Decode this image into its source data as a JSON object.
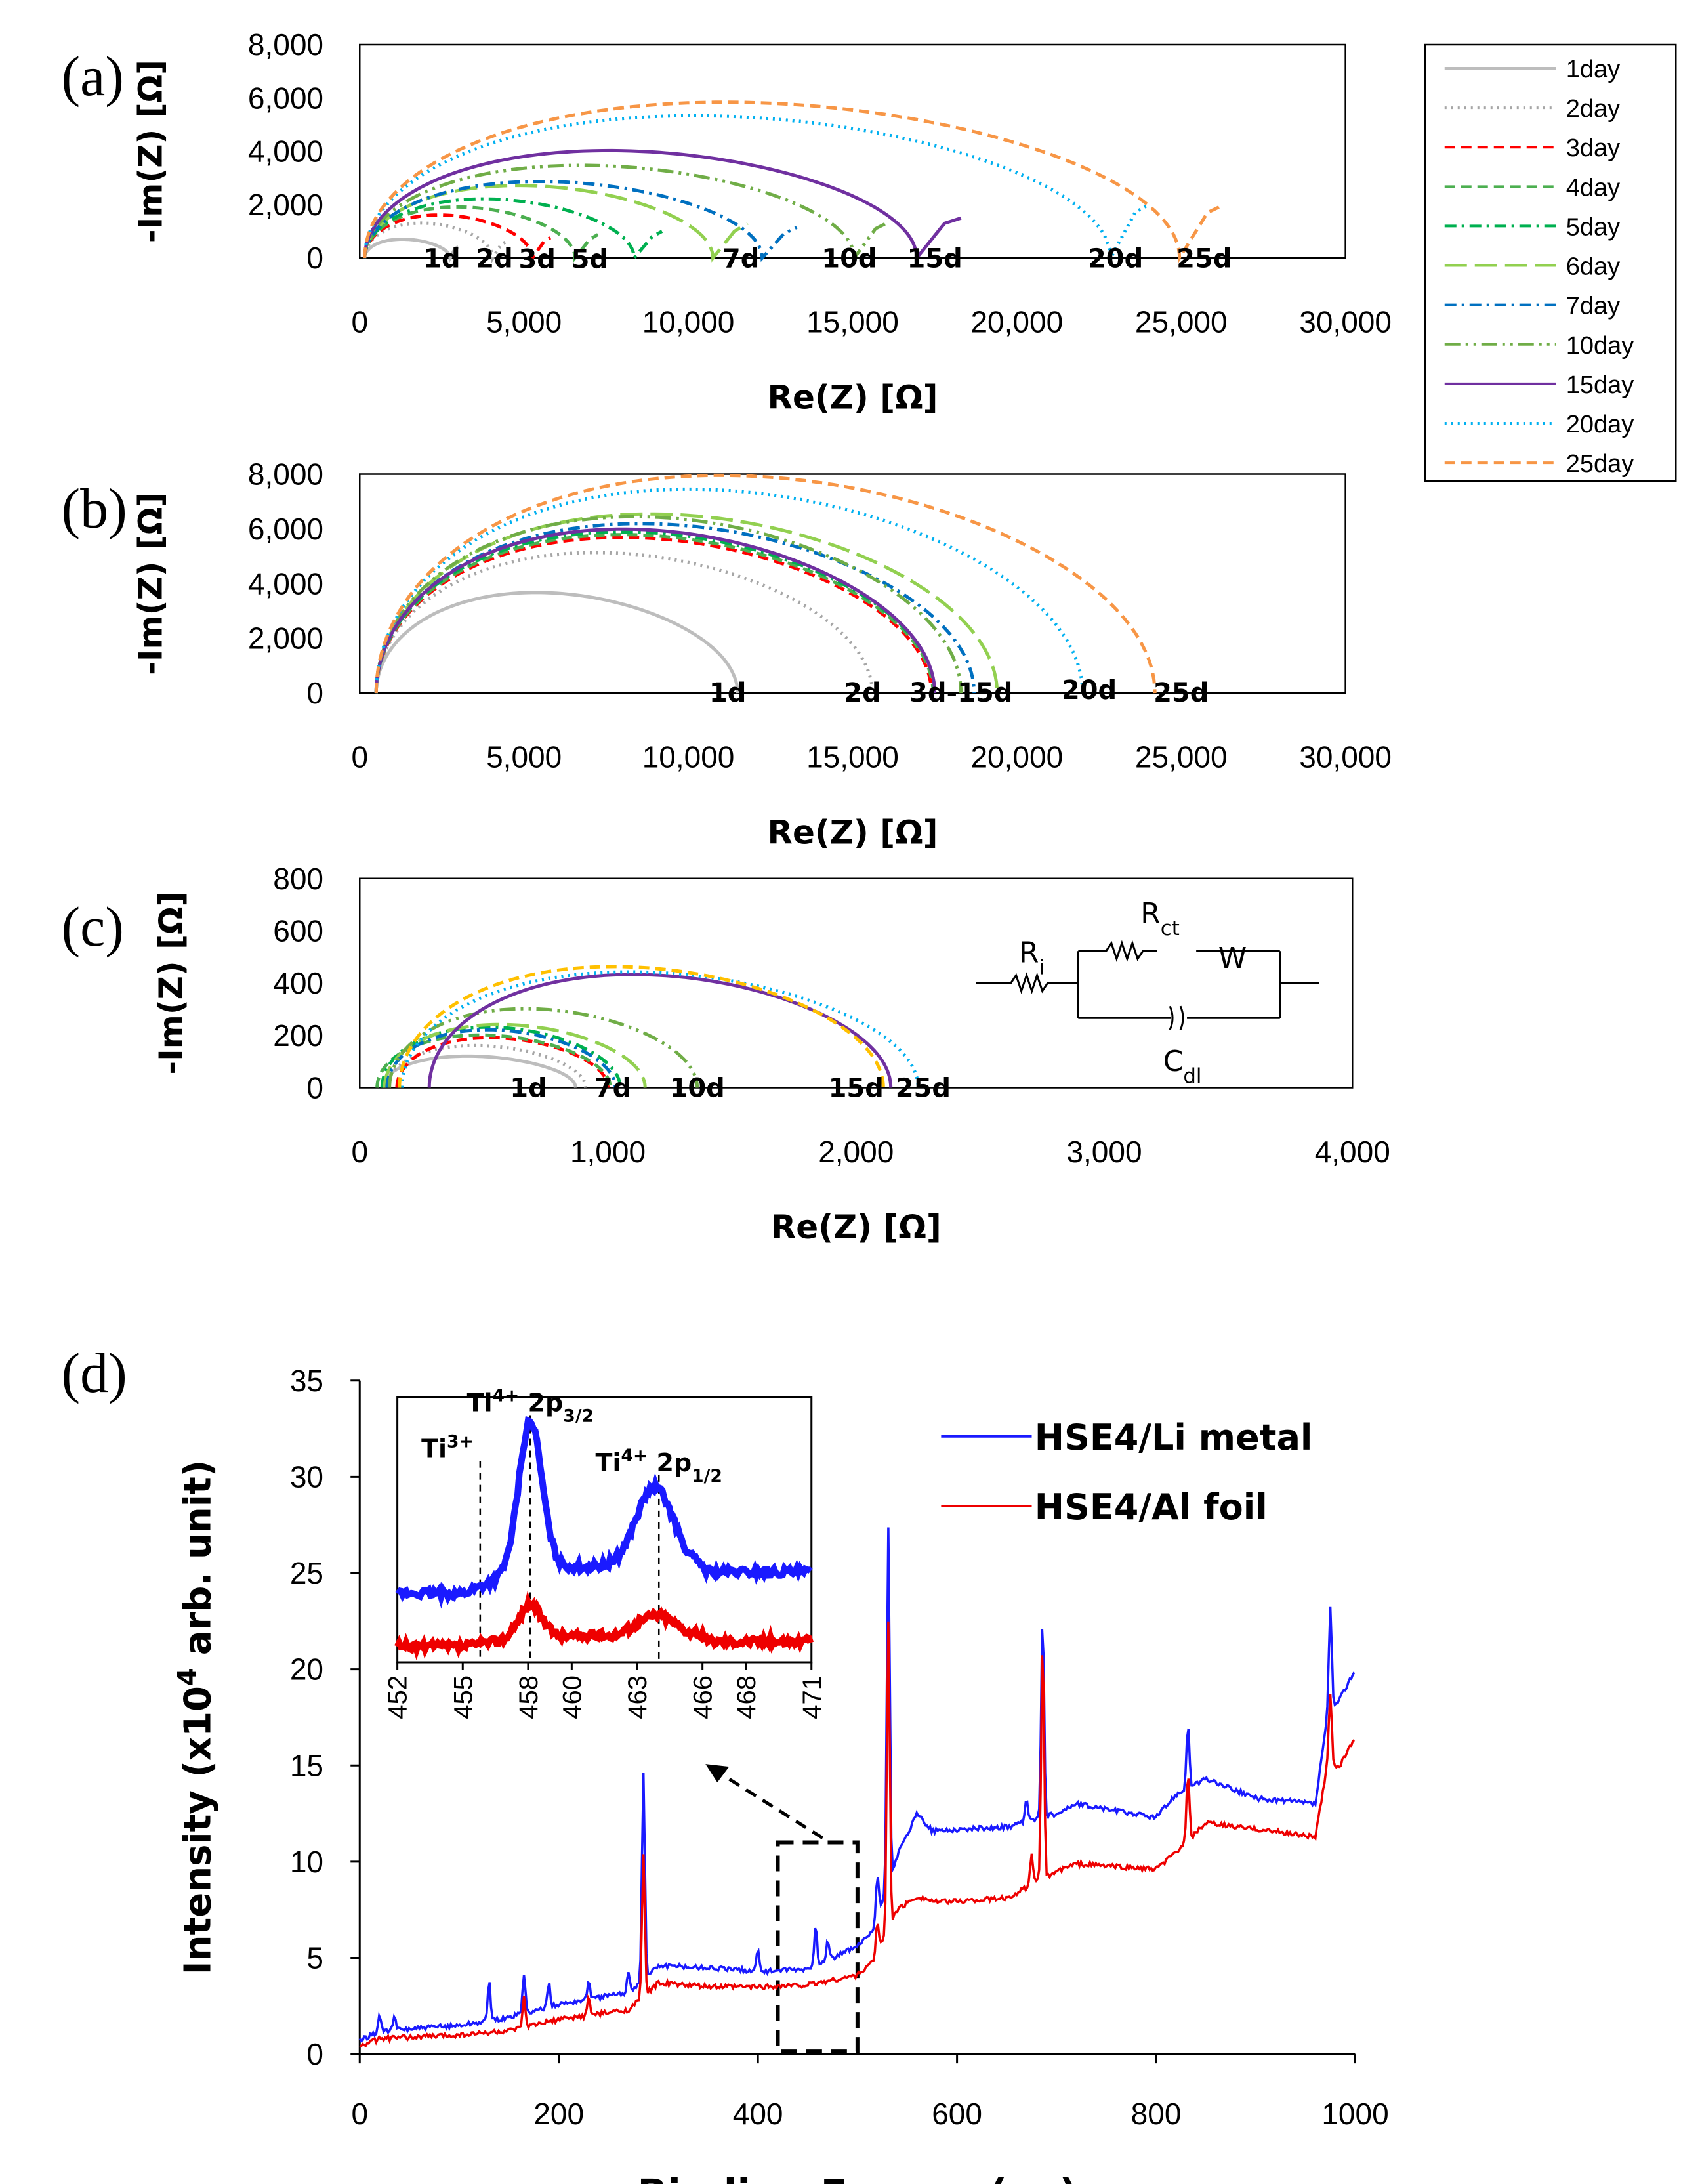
{
  "chart_data": [
    {
      "id": "a",
      "type": "line",
      "panel_label": "(a)",
      "xlabel": "Re(Z) [Ω]",
      "ylabel": "-Im(Z) [Ω]",
      "xlim": [
        0,
        30000
      ],
      "ylim": [
        0,
        8000
      ],
      "xticks": [
        "0",
        "5,000",
        "10,000",
        "15,000",
        "20,000",
        "25,000",
        "30,000"
      ],
      "yticks": [
        "0",
        "2,000",
        "4,000",
        "6,000",
        "8,000"
      ],
      "legend_position": "right",
      "legend": [
        "1day",
        "2day",
        "3day",
        "4day",
        "5day",
        "6day",
        "7day",
        "10day",
        "15day",
        "20day",
        "25day"
      ],
      "series": [
        {
          "name": "1day",
          "color": "#bdbdbd",
          "dash": "solid",
          "r0": 150,
          "diam": 2600,
          "peak": 700,
          "tail": [
            [
              2900,
              350
            ],
            [
              3000,
              420
            ]
          ]
        },
        {
          "name": "2day",
          "color": "#a6a6a6",
          "dash": "dot",
          "r0": 150,
          "diam": 3900,
          "peak": 1300,
          "tail": [
            [
              4300,
              500
            ],
            [
              4500,
              640
            ]
          ]
        },
        {
          "name": "3day",
          "color": "#ff0000",
          "dash": "dash",
          "r0": 150,
          "diam": 5100,
          "peak": 1600,
          "tail": [
            [
              5600,
              600
            ],
            [
              5800,
              760
            ]
          ]
        },
        {
          "name": "4day",
          "color": "#4caf50",
          "dash": "dash",
          "r0": 150,
          "diam": 6400,
          "peak": 1900,
          "tail": [
            [
              7000,
              700
            ],
            [
              7250,
              880
            ]
          ]
        },
        {
          "name": "5day",
          "color": "#00b050",
          "dash": "dashdot",
          "r0": 150,
          "diam": 8200,
          "peak": 2200,
          "tail": [
            [
              8900,
              800
            ],
            [
              9200,
              1000
            ]
          ]
        },
        {
          "name": "6day",
          "color": "#92d050",
          "dash": "longdash",
          "r0": 150,
          "diam": 10600,
          "peak": 2700,
          "tail": [
            [
              11400,
              1000
            ],
            [
              11800,
              1300
            ]
          ]
        },
        {
          "name": "7day",
          "color": "#0070c0",
          "dash": "dashdot",
          "r0": 150,
          "diam": 12100,
          "peak": 2850,
          "tail": [
            [
              12900,
              900
            ],
            [
              13300,
              1150
            ]
          ]
        },
        {
          "name": "10day",
          "color": "#70ad47",
          "dash": "dashdotdot",
          "r0": 150,
          "diam": 14900,
          "peak": 3450,
          "tail": [
            [
              15700,
              1100
            ],
            [
              16100,
              1350
            ]
          ]
        },
        {
          "name": "15day",
          "color": "#7030a0",
          "dash": "solid",
          "r0": 150,
          "diam": 16800,
          "peak": 4000,
          "tail": [
            [
              17800,
              1300
            ],
            [
              18300,
              1500
            ]
          ]
        },
        {
          "name": "20day",
          "color": "#00b0f0",
          "dash": "dot",
          "r0": 150,
          "diam": 22700,
          "peak": 5300,
          "tail": [
            [
              23600,
              1700
            ],
            [
              24000,
              2000
            ]
          ]
        },
        {
          "name": "25day",
          "color": "#f79646",
          "dash": "dash",
          "r0": 150,
          "diam": 24800,
          "peak": 5800,
          "tail": [
            [
              25800,
              1700
            ],
            [
              26300,
              2000
            ]
          ]
        }
      ],
      "annotations": [
        {
          "text": "1d",
          "x": 2500,
          "y": 680
        },
        {
          "text": "2d",
          "x": 4100,
          "y": 680
        },
        {
          "text": "3d",
          "x": 5400,
          "y": 650
        },
        {
          "text": "5d",
          "x": 7000,
          "y": 650
        },
        {
          "text": "7d",
          "x": 11600,
          "y": 680
        },
        {
          "text": "10d",
          "x": 14900,
          "y": 680
        },
        {
          "text": "15d",
          "x": 17500,
          "y": 680
        },
        {
          "text": "20d",
          "x": 23000,
          "y": 680
        },
        {
          "text": "25d",
          "x": 25700,
          "y": 680
        }
      ]
    },
    {
      "id": "b",
      "type": "line",
      "panel_label": "(b)",
      "xlabel": "Re(Z) [Ω]",
      "ylabel": "-Im(Z) [Ω]",
      "xlim": [
        0,
        30000
      ],
      "ylim": [
        0,
        8000
      ],
      "xticks": [
        "0",
        "5,000",
        "10,000",
        "15,000",
        "20,000",
        "25,000",
        "30,000"
      ],
      "yticks": [
        "0",
        "2,000",
        "4,000",
        "6,000",
        "8,000"
      ],
      "series": [
        {
          "name": "1day",
          "color": "#bdbdbd",
          "dash": "solid",
          "r0": 500,
          "diam": 11000,
          "peak": 3650
        },
        {
          "name": "2day",
          "color": "#a6a6a6",
          "dash": "dot",
          "r0": 500,
          "diam": 15100,
          "peak": 5100
        },
        {
          "name": "3day",
          "color": "#ff0000",
          "dash": "dash",
          "r0": 500,
          "diam": 16900,
          "peak": 5650
        },
        {
          "name": "4day",
          "color": "#4caf50",
          "dash": "dash",
          "r0": 500,
          "diam": 16950,
          "peak": 5750
        },
        {
          "name": "5day",
          "color": "#00b050",
          "dash": "dashdot",
          "r0": 500,
          "diam": 17000,
          "peak": 5850
        },
        {
          "name": "6day",
          "color": "#92d050",
          "dash": "longdash",
          "r0": 500,
          "diam": 18900,
          "peak": 6500
        },
        {
          "name": "7day",
          "color": "#0070c0",
          "dash": "dashdot",
          "r0": 500,
          "diam": 18200,
          "peak": 6150
        },
        {
          "name": "10day",
          "color": "#70ad47",
          "dash": "dashdotdot",
          "r0": 500,
          "diam": 17800,
          "peak": 6400
        },
        {
          "name": "15day",
          "color": "#7030a0",
          "dash": "solid",
          "r0": 500,
          "diam": 17000,
          "peak": 5950
        },
        {
          "name": "20day",
          "color": "#00b0f0",
          "dash": "dot",
          "r0": 500,
          "diam": 21500,
          "peak": 7400
        },
        {
          "name": "25day",
          "color": "#f79646",
          "dash": "dash",
          "r0": 500,
          "diam": 23700,
          "peak": 7900
        }
      ],
      "annotations": [
        {
          "text": "1d",
          "x": 11200,
          "y": 700
        },
        {
          "text": "2d",
          "x": 15300,
          "y": 700
        },
        {
          "text": "3d-15d",
          "x": 18300,
          "y": 700
        },
        {
          "text": "20d",
          "x": 22200,
          "y": 800
        },
        {
          "text": "25d",
          "x": 25000,
          "y": 700
        }
      ]
    },
    {
      "id": "c",
      "type": "line",
      "panel_label": "(c)",
      "xlabel": "Re(Z) [Ω]",
      "ylabel": "-Im(Z) [Ω]",
      "xlim": [
        0,
        4000
      ],
      "ylim": [
        0,
        800
      ],
      "xticks": [
        "0",
        "1,000",
        "2,000",
        "3,000",
        "4,000"
      ],
      "yticks": [
        "0",
        "200",
        "400",
        "600",
        "800"
      ],
      "series": [
        {
          "name": "1day",
          "color": "#bdbdbd",
          "dash": "solid",
          "r0": 90,
          "diam": 780,
          "peak": 120
        },
        {
          "name": "2day",
          "color": "#a6a6a6",
          "dash": "dot",
          "r0": 110,
          "diam": 800,
          "peak": 160
        },
        {
          "name": "3day",
          "color": "#ff0000",
          "dash": "dash",
          "r0": 150,
          "diam": 850,
          "peak": 190
        },
        {
          "name": "4day",
          "color": "#4caf50",
          "dash": "dash",
          "r0": 70,
          "diam": 940,
          "peak": 200
        },
        {
          "name": "5day",
          "color": "#00b050",
          "dash": "dashdot",
          "r0": 90,
          "diam": 960,
          "peak": 230
        },
        {
          "name": "6day",
          "color": "#92d050",
          "dash": "longdash",
          "r0": 100,
          "diam": 1050,
          "peak": 240
        },
        {
          "name": "7day",
          "color": "#0070c0",
          "dash": "dashdot",
          "r0": 110,
          "diam": 920,
          "peak": 220
        },
        {
          "name": "10day",
          "color": "#70ad47",
          "dash": "dashdotdot",
          "r0": 120,
          "diam": 1240,
          "peak": 300
        },
        {
          "name": "15day",
          "color": "#7030a0",
          "dash": "solid",
          "r0": 280,
          "diam": 1860,
          "peak": 430
        },
        {
          "name": "20day",
          "color": "#00b0f0",
          "dash": "dot",
          "r0": 170,
          "diam": 2080,
          "peak": 440
        },
        {
          "name": "25day",
          "color": "#ffc000",
          "dash": "dash",
          "r0": 160,
          "diam": 1950,
          "peak": 460
        }
      ],
      "annotations": [
        {
          "text": "1d",
          "x": 680,
          "y": 70
        },
        {
          "text": "7d",
          "x": 1020,
          "y": 70
        },
        {
          "text": "10d",
          "x": 1360,
          "y": 70
        },
        {
          "text": "15d",
          "x": 2000,
          "y": 70
        },
        {
          "text": "25d",
          "x": 2270,
          "y": 70
        }
      ],
      "circuit": {
        "ri": "R",
        "ri_sub": "i",
        "rct": "R",
        "rct_sub": "ct",
        "w": "W",
        "cdl": "C",
        "cdl_sub": "dl"
      }
    },
    {
      "id": "d",
      "type": "line",
      "panel_label": "(d)",
      "xlabel": "Binding Energy (ev)",
      "ylabel_prefix": "Intensity (x10",
      "ylabel_sup": "4",
      "ylabel_suffix": " arb. unit)",
      "xlim": [
        0,
        1000
      ],
      "ylim": [
        0,
        35
      ],
      "xticks": [
        "0",
        "200",
        "400",
        "600",
        "800",
        "1000"
      ],
      "yticks": [
        "0",
        "5",
        "10",
        "15",
        "20",
        "25",
        "30",
        "35"
      ],
      "legend_position": "top-right",
      "series": [
        {
          "name": "HSE4/Li metal",
          "color": "#1a1aff",
          "base": [
            [
              0,
              0.7
            ],
            [
              20,
              1.2
            ],
            [
              100,
              1.5
            ],
            [
              150,
              1.9
            ],
            [
              200,
              2.6
            ],
            [
              270,
              3.2
            ],
            [
              300,
              4.6
            ],
            [
              350,
              4.5
            ],
            [
              400,
              4.3
            ],
            [
              450,
              4.4
            ],
            [
              500,
              5.6
            ],
            [
              515,
              6.3
            ],
            [
              540,
              10.3
            ],
            [
              560,
              12.5
            ],
            [
              575,
              11.6
            ],
            [
              650,
              11.8
            ],
            [
              700,
              12.5
            ],
            [
              720,
              13.0
            ],
            [
              800,
              12.3
            ],
            [
              820,
              13.5
            ],
            [
              850,
              14.3
            ],
            [
              900,
              13.3
            ],
            [
              960,
              13.0
            ],
            [
              972,
              17.5
            ],
            [
              985,
              18.5
            ],
            [
              1000,
              20.0
            ]
          ],
          "peaks": [
            [
              20,
              0.8
            ],
            [
              35,
              0.6
            ],
            [
              130,
              2.0
            ],
            [
              165,
              2.0
            ],
            [
              190,
              1.2
            ],
            [
              230,
              1.0
            ],
            [
              270,
              1.0
            ],
            [
              285,
              10.8
            ],
            [
              400,
              1.2
            ],
            [
              458,
              2.2
            ],
            [
              470,
              1.0
            ],
            [
              520,
              2.2
            ],
            [
              531,
              18.5
            ],
            [
              670,
              1.2
            ],
            [
              686,
              10.5
            ],
            [
              832,
              3.3
            ],
            [
              975,
              5.5
            ]
          ]
        },
        {
          "name": "HSE4/Al foil",
          "color": "#ee0000",
          "base": [
            [
              0,
              0.4
            ],
            [
              20,
              0.8
            ],
            [
              100,
              1.0
            ],
            [
              150,
              1.2
            ],
            [
              200,
              1.8
            ],
            [
              270,
              2.3
            ],
            [
              300,
              3.7
            ],
            [
              350,
              3.5
            ],
            [
              400,
              3.5
            ],
            [
              450,
              3.6
            ],
            [
              500,
              4.1
            ],
            [
              515,
              4.8
            ],
            [
              540,
              7.5
            ],
            [
              560,
              8.2
            ],
            [
              580,
              7.9
            ],
            [
              650,
              8.1
            ],
            [
              700,
              9.5
            ],
            [
              720,
              9.9
            ],
            [
              800,
              9.6
            ],
            [
              820,
              10.5
            ],
            [
              850,
              12.0
            ],
            [
              900,
              11.7
            ],
            [
              960,
              11.3
            ],
            [
              972,
              15.0
            ],
            [
              985,
              15.0
            ],
            [
              1000,
              16.5
            ]
          ],
          "peaks": [
            [
              165,
              1.5
            ],
            [
              230,
              0.9
            ],
            [
              285,
              7.3
            ],
            [
              520,
              1.5
            ],
            [
              531,
              16.0
            ],
            [
              675,
              1.5
            ],
            [
              686,
              12.5
            ],
            [
              832,
              3.5
            ],
            [
              975,
              3.8
            ]
          ]
        }
      ],
      "legend": [
        "HSE4/Li metal",
        "HSE4/Al foil"
      ],
      "inset": {
        "xticks": [
          "452",
          "455",
          "458",
          "460",
          "463",
          "466",
          "468",
          "471"
        ],
        "xlim": [
          452,
          471
        ],
        "labels": [
          {
            "main": "Ti",
            "sup": "3+",
            "orb": "",
            "sub": "",
            "x": 455.8
          },
          {
            "main": "Ti",
            "sup": "4+",
            "orb": " 2p",
            "sub": "3/2",
            "x": 458.1
          },
          {
            "main": "Ti",
            "sup": "4+",
            "orb": " 2p",
            "sub": "1/2",
            "x": 464.0
          }
        ],
        "series": [
          {
            "name": "HSE4/Li metal",
            "color": "#1a1aff",
            "baseline": 0.26,
            "slope_end": 0.36,
            "peaks": [
              [
                458.1,
                0.55,
                0.75
              ],
              [
                463.8,
                0.3,
                1.2
              ]
            ]
          },
          {
            "name": "HSE4/Al foil",
            "color": "#ee0000",
            "baseline": 0.06,
            "slope_end": 0.1,
            "peaks": [
              [
                458.1,
                0.12,
                0.7
              ],
              [
                463.9,
                0.08,
                1.2
              ]
            ]
          }
        ],
        "box_range": [
          420,
          500
        ],
        "box_ylim": [
          0,
          11
        ]
      }
    }
  ]
}
